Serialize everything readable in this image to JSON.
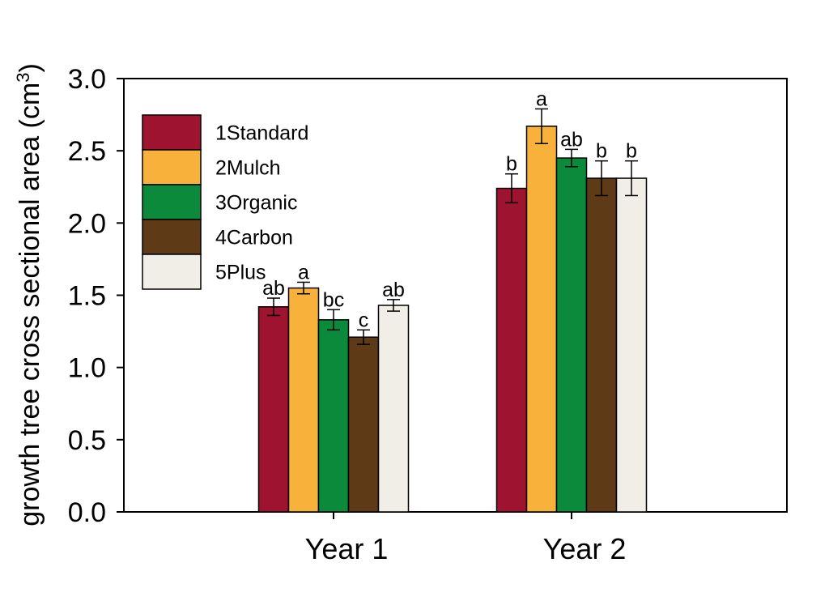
{
  "chart_data": {
    "type": "bar",
    "ylabel": "growth tree cross sectional area (cm",
    "ylabel_superscript": "3",
    "ylabel_close": ")",
    "ylim": [
      0,
      3.0
    ],
    "yticks": [
      "0.0",
      "0.5",
      "1.0",
      "1.5",
      "2.0",
      "2.5",
      "3.0"
    ],
    "categories": [
      "Year 1",
      "Year 2"
    ],
    "series": [
      {
        "name": "1Standard",
        "color": "#9e1430",
        "values": [
          1.42,
          2.24
        ],
        "errors": [
          0.06,
          0.1
        ],
        "labels": [
          "ab",
          "b"
        ]
      },
      {
        "name": "2Mulch",
        "color": "#f8b23c",
        "values": [
          1.55,
          2.67
        ],
        "errors": [
          0.04,
          0.12
        ],
        "labels": [
          "a",
          "a"
        ]
      },
      {
        "name": "3Organic",
        "color": "#0c8a3c",
        "values": [
          1.33,
          2.45
        ],
        "errors": [
          0.07,
          0.06
        ],
        "labels": [
          "bc",
          "ab"
        ]
      },
      {
        "name": "4Carbon",
        "color": "#5e3a17",
        "values": [
          1.21,
          2.31
        ],
        "errors": [
          0.05,
          0.12
        ],
        "labels": [
          "c",
          "b"
        ]
      },
      {
        "name": "5Plus",
        "color": "#f0eee6",
        "values": [
          1.43,
          2.31
        ],
        "errors": [
          0.04,
          0.12
        ],
        "labels": [
          "ab",
          "b"
        ]
      }
    ],
    "legend": "top-left",
    "grid": false
  }
}
